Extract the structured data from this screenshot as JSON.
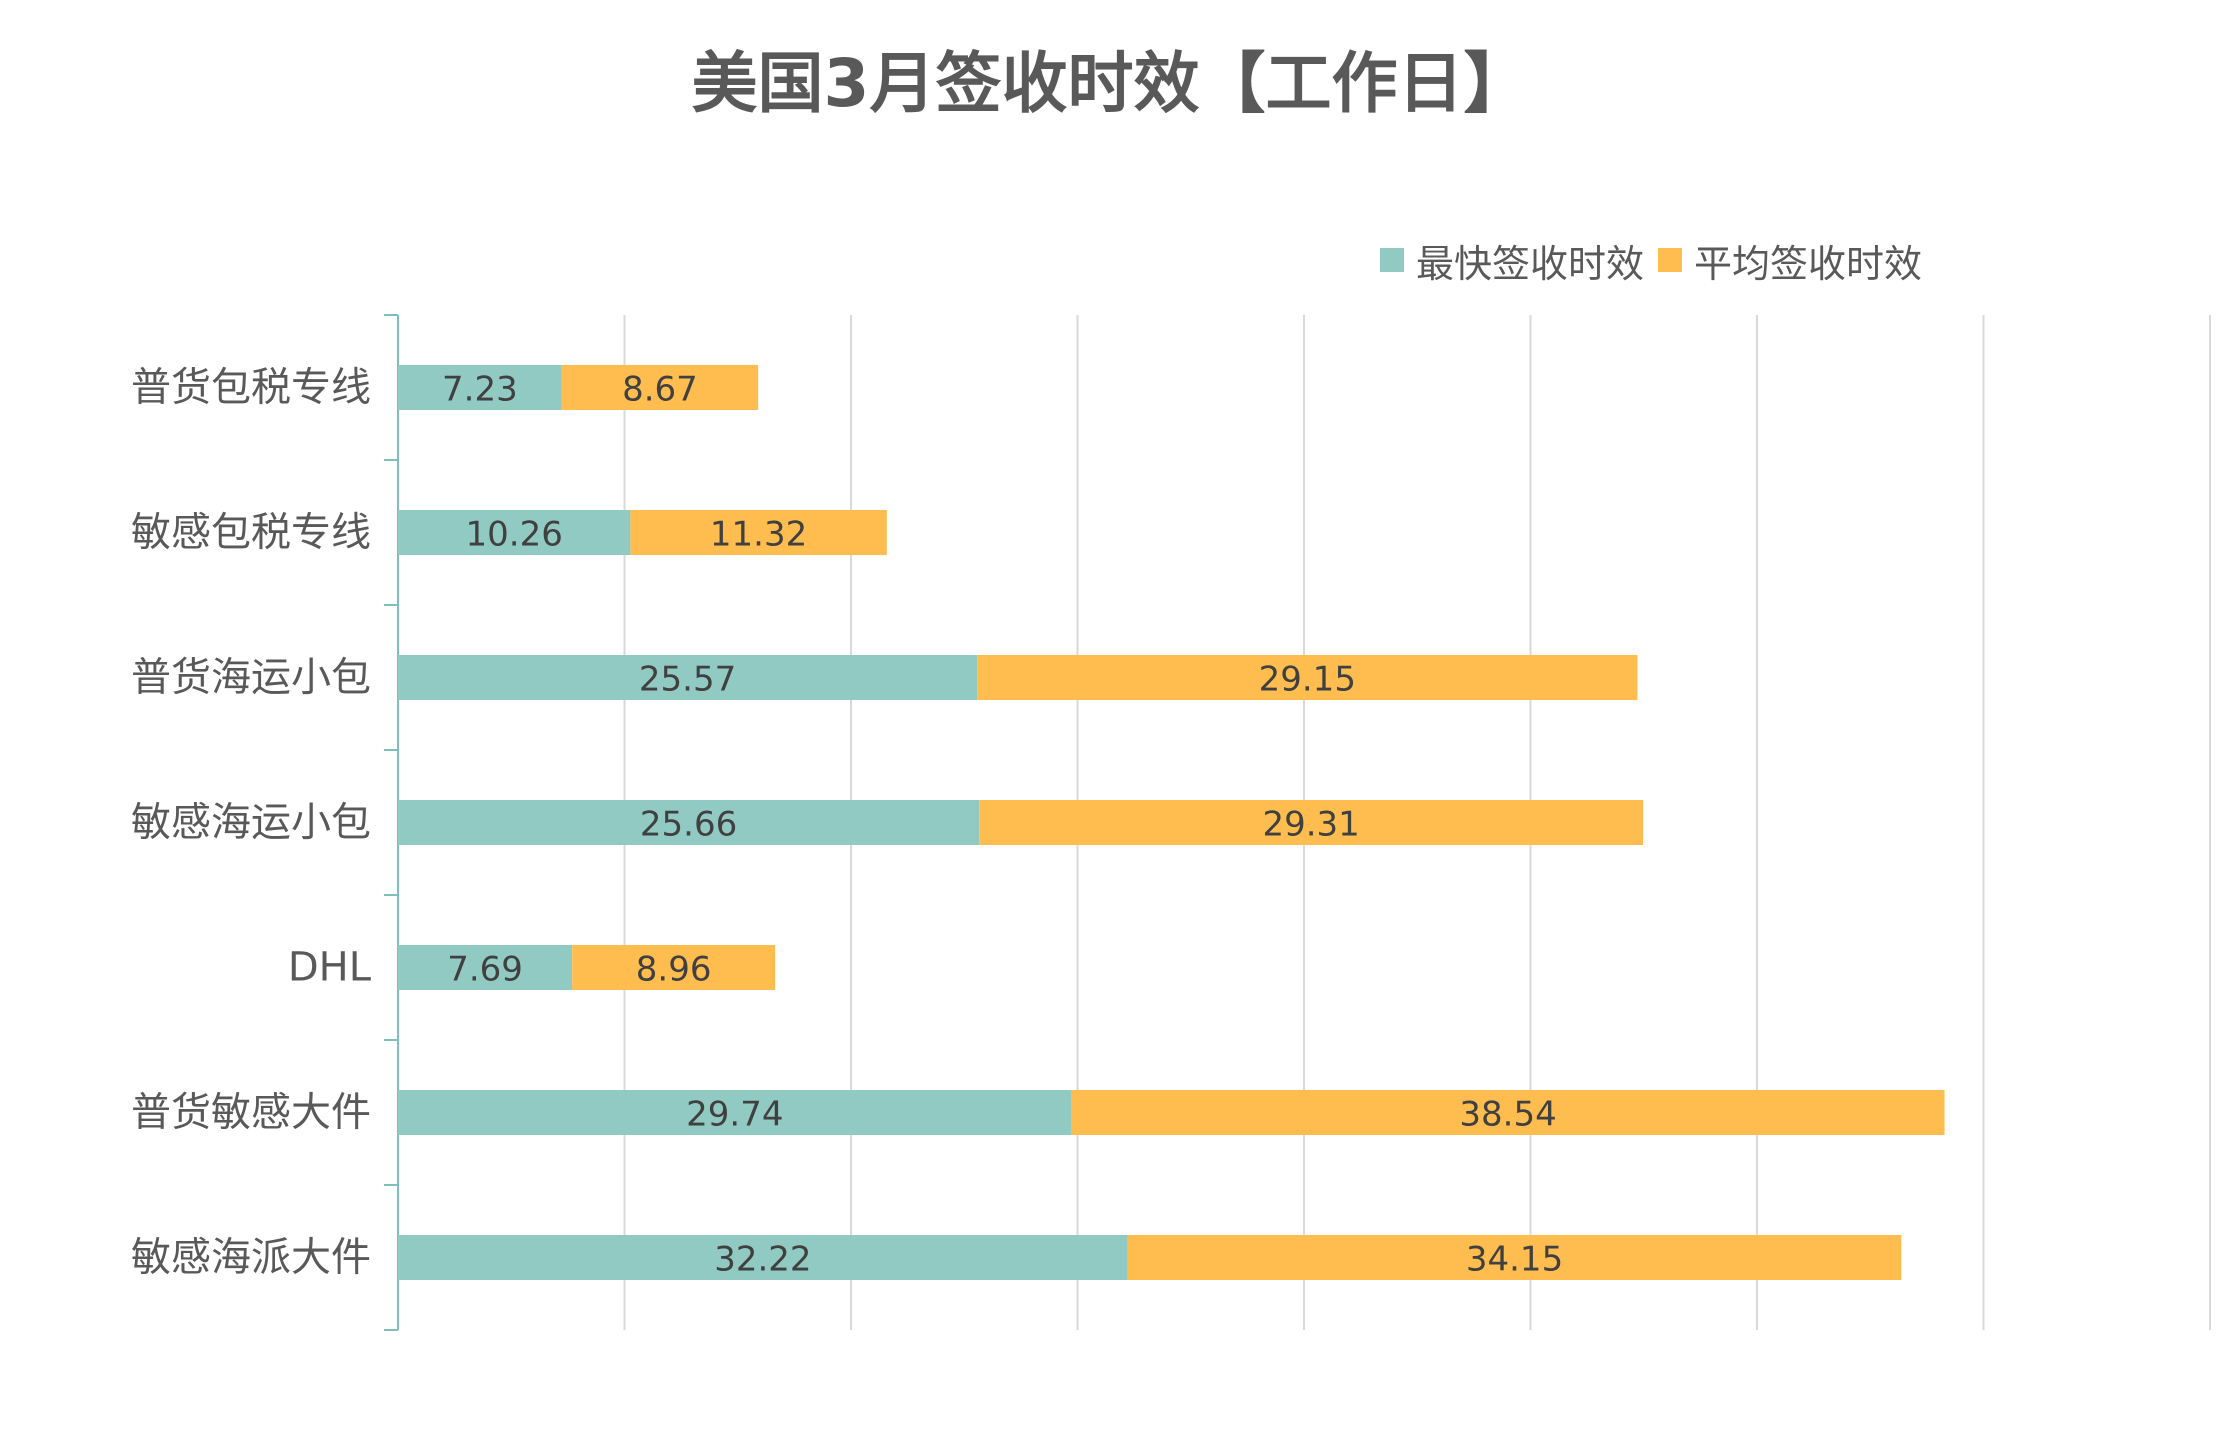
{
  "chart_data": {
    "type": "bar",
    "orientation": "horizontal",
    "stacked": true,
    "title": "美国3月签收时效【工作日】",
    "categories": [
      "普货包税专线",
      "敏感包税专线",
      "普货海运小包",
      "敏感海运小包",
      "DHL",
      "普货敏感大件",
      "敏感海派大件"
    ],
    "series": [
      {
        "name": "最快签收时效",
        "values": [
          7.23,
          10.26,
          25.57,
          25.66,
          7.69,
          29.74,
          32.22
        ],
        "color": "#91C9C3"
      },
      {
        "name": "平均签收时效",
        "values": [
          8.67,
          11.32,
          29.15,
          29.31,
          8.96,
          38.54,
          34.15
        ],
        "color": "#FFBD4F"
      }
    ],
    "data_labels": true,
    "xlim": [
      0,
      80
    ],
    "grid": true,
    "legend_position": "top-right",
    "axis_color": "#7FBFBA",
    "grid_color": "#D9D9D9"
  }
}
